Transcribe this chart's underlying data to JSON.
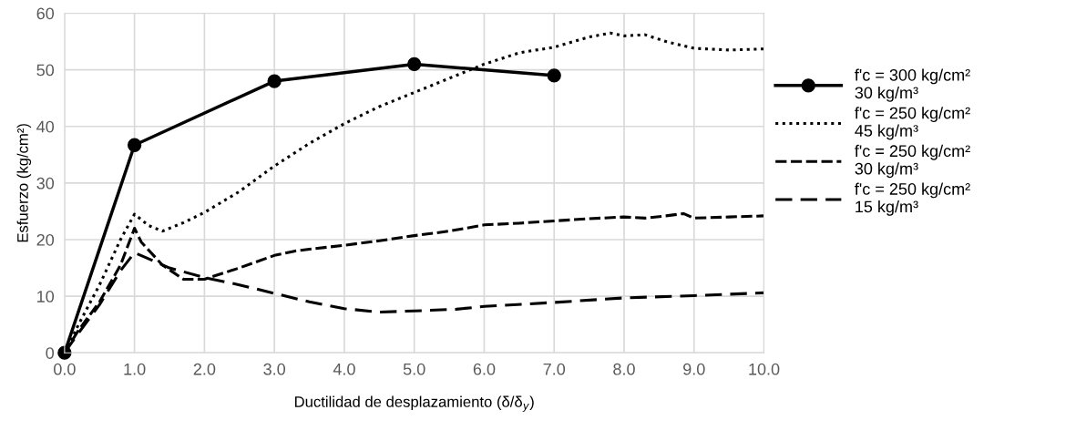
{
  "chart_data": {
    "type": "line",
    "xlabel": "Ductilidad de desplazamiento (δ/δ$_{y}$)",
    "ylabel": "Esfuerzo (kg/cm²)",
    "xlim": [
      0,
      10
    ],
    "ylim": [
      0,
      60
    ],
    "xticks": [
      {
        "value": 0,
        "label": "0.0"
      },
      {
        "value": 1,
        "label": "1.0"
      },
      {
        "value": 2,
        "label": "2.0"
      },
      {
        "value": 3,
        "label": "3.0"
      },
      {
        "value": 4,
        "label": "4.0"
      },
      {
        "value": 5,
        "label": "5.0"
      },
      {
        "value": 6,
        "label": "6.0"
      },
      {
        "value": 7,
        "label": "7.0"
      },
      {
        "value": 8,
        "label": "8.0"
      },
      {
        "value": 9,
        "label": "9.0"
      },
      {
        "value": 10,
        "label": "10.0"
      }
    ],
    "yticks": [
      0,
      10,
      20,
      30,
      40,
      50,
      60
    ],
    "grid": true,
    "legend": "right",
    "series": [
      {
        "name": "f'c = 300 kg/cm²\n30 kg/m³",
        "color": "#000000",
        "marker": "circle",
        "line_style": "solid",
        "x": [
          0,
          1,
          3,
          5,
          7
        ],
        "values": [
          0,
          36.7,
          48,
          51,
          49
        ]
      },
      {
        "name": "f'c = 250 kg/cm²\n45 kg/m³",
        "color": "#000000",
        "marker": "none",
        "line_style": "dotted",
        "x": [
          0,
          0.2,
          0.5,
          0.8,
          1.0,
          1.2,
          1.4,
          1.7,
          2.0,
          2.5,
          3.0,
          3.5,
          4.0,
          4.5,
          5.0,
          5.5,
          6.0,
          6.5,
          7.0,
          7.5,
          7.8,
          8.0,
          8.3,
          8.6,
          9.0,
          9.5,
          10
        ],
        "values": [
          0,
          5,
          12,
          20,
          24.5,
          22.5,
          21.5,
          23,
          24.8,
          28.5,
          33,
          37,
          40.5,
          43.5,
          46,
          48.5,
          51,
          53,
          54,
          55.8,
          56.5,
          56,
          56.2,
          55,
          53.8,
          53.5,
          53.7
        ]
      },
      {
        "name": "f'c = 250 kg/cm²\n30 kg/m³",
        "color": "#000000",
        "marker": "none",
        "line_style": "dashed",
        "x": [
          0,
          0.2,
          0.5,
          0.8,
          1.0,
          1.1,
          1.4,
          1.7,
          2.0,
          2.5,
          3.0,
          3.3,
          3.5,
          4.0,
          4.5,
          5.0,
          5.5,
          6.0,
          6.5,
          7.0,
          7.5,
          8.0,
          8.3,
          8.6,
          8.85,
          9.0,
          9.5,
          10
        ],
        "values": [
          0,
          4,
          9,
          15.5,
          22,
          19.5,
          15.5,
          13,
          13,
          15,
          17.2,
          18,
          18.3,
          19,
          19.8,
          20.7,
          21.5,
          22.6,
          22.9,
          23.3,
          23.7,
          24,
          23.8,
          24.2,
          24.6,
          23.8,
          24,
          24.2
        ]
      },
      {
        "name": "f'c = 250 kg/cm²\n15 kg/m³",
        "color": "#000000",
        "marker": "none",
        "line_style": "dashed",
        "x": [
          0,
          0.2,
          0.5,
          0.8,
          1.0,
          1.5,
          2.0,
          2.5,
          3.0,
          3.5,
          4.0,
          4.5,
          5.0,
          5.6,
          6.0,
          7.0,
          8.0,
          9.0,
          10
        ],
        "values": [
          0,
          3.5,
          8.5,
          14.5,
          17.7,
          15,
          13.3,
          12,
          10.5,
          9,
          7.8,
          7.2,
          7.4,
          7.7,
          8.2,
          8.9,
          9.7,
          10.1,
          10.6
        ]
      }
    ]
  }
}
